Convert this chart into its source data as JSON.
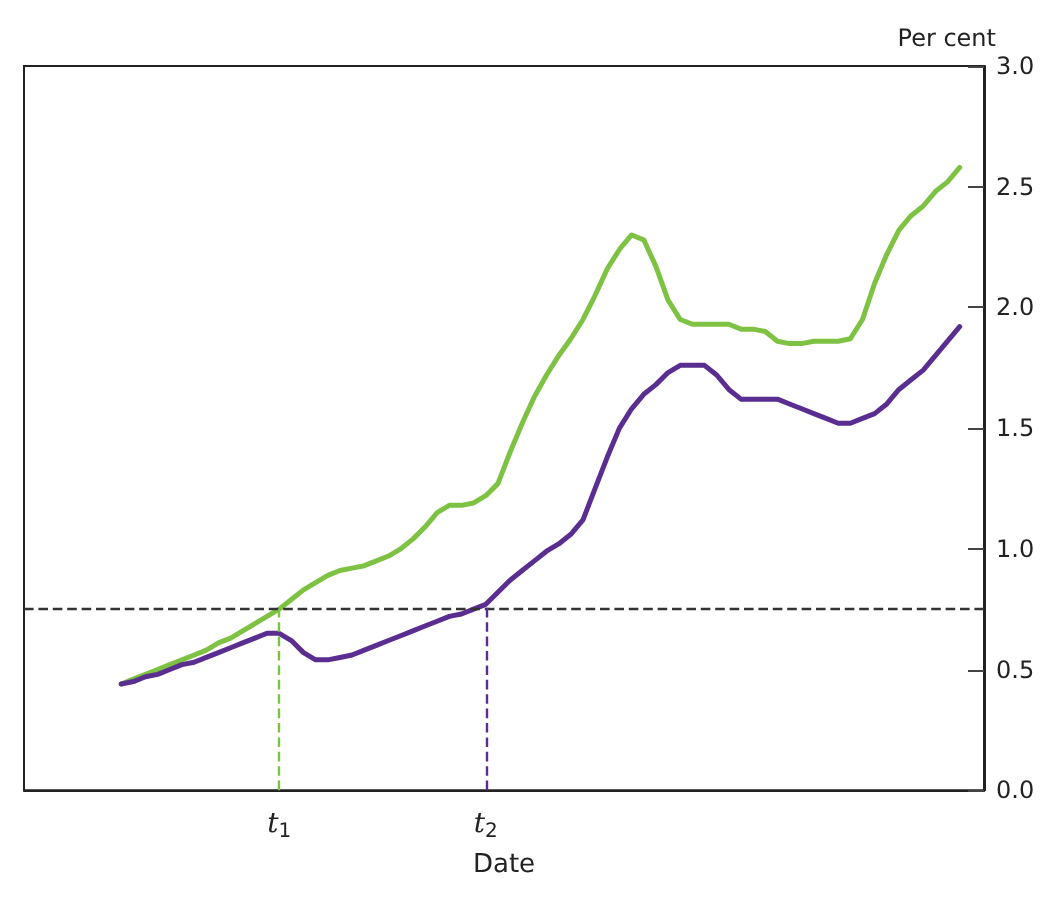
{
  "chart_data": {
    "type": "line",
    "xlabel": "Date",
    "ylabel": "Per cent",
    "marker": "none",
    "categories": [
      null,
      null,
      null,
      null,
      null,
      null,
      null,
      null,
      null,
      null,
      null,
      null,
      null,
      null,
      null,
      null,
      null,
      null,
      null,
      null,
      null,
      "t$_{1}$",
      null,
      null,
      null,
      null,
      null,
      null,
      null,
      null,
      null,
      null,
      null,
      null,
      null,
      null,
      null,
      null,
      "t$_{2}$",
      null,
      null,
      null,
      null,
      null,
      null,
      null,
      null,
      null,
      null,
      null,
      null,
      null,
      null,
      null,
      null,
      null,
      null,
      null,
      null,
      null,
      null,
      null,
      null,
      null,
      null,
      null,
      null,
      null,
      null,
      null,
      null,
      null,
      null,
      null,
      null,
      null,
      null,
      null,
      null,
      null
    ],
    "series": [
      {
        "color": "#7dc243",
        "values": [
          null,
          null,
          null,
          null,
          null,
          null,
          null,
          null,
          0.44,
          0.46,
          0.48,
          0.5,
          0.52,
          0.54,
          0.56,
          0.58,
          0.61,
          0.63,
          0.66,
          0.69,
          0.72,
          0.75,
          0.79,
          0.83,
          0.86,
          0.89,
          0.91,
          0.92,
          0.93,
          0.95,
          0.97,
          1.0,
          1.04,
          1.09,
          1.15,
          1.18,
          1.18,
          1.19,
          1.22,
          1.27,
          1.4,
          1.52,
          1.63,
          1.72,
          1.8,
          1.87,
          1.95,
          2.05,
          2.16,
          2.24,
          2.3,
          2.28,
          2.17,
          2.03,
          1.95,
          1.93,
          1.93,
          1.93,
          1.93,
          1.91,
          1.91,
          1.9,
          1.86,
          1.85,
          1.85,
          1.86,
          1.86,
          1.86,
          1.87,
          1.95,
          2.1,
          2.22,
          2.32,
          2.38,
          2.42,
          2.48,
          2.52,
          2.58,
          null,
          null
        ]
      },
      {
        "color": "#5a2d91",
        "values": [
          null,
          null,
          null,
          null,
          null,
          null,
          null,
          null,
          0.44,
          0.45,
          0.47,
          0.48,
          0.5,
          0.52,
          0.53,
          0.55,
          0.57,
          0.59,
          0.61,
          0.63,
          0.65,
          0.65,
          0.62,
          0.57,
          0.54,
          0.54,
          0.55,
          0.56,
          0.58,
          0.6,
          0.62,
          0.64,
          0.66,
          0.68,
          0.7,
          0.72,
          0.73,
          0.75,
          0.77,
          0.82,
          0.87,
          0.91,
          0.95,
          0.99,
          1.02,
          1.06,
          1.12,
          1.25,
          1.38,
          1.5,
          1.58,
          1.64,
          1.68,
          1.73,
          1.76,
          1.76,
          1.76,
          1.72,
          1.66,
          1.62,
          1.62,
          1.62,
          1.62,
          1.6,
          1.58,
          1.56,
          1.54,
          1.52,
          1.52,
          1.54,
          1.56,
          1.6,
          1.66,
          1.7,
          1.74,
          1.8,
          1.86,
          1.92,
          null,
          null
        ]
      }
    ],
    "ylim": [
      0,
      3
    ],
    "yticks": [
      {
        "value": 0,
        "label": "0.0"
      },
      {
        "value": 0.5,
        "label": "0.5"
      },
      {
        "value": 1,
        "label": "1.0"
      },
      {
        "value": 1.5,
        "label": "1.5"
      },
      {
        "value": 2,
        "label": "2.0"
      },
      {
        "value": 2.5,
        "label": "2.5"
      },
      {
        "value": 3,
        "label": "3.0"
      }
    ],
    "ref_lines": [
      {
        "axis": "y",
        "value": 0.75,
        "color": "#333333",
        "line_style": "dashed"
      },
      {
        "axis": "x",
        "value": "t$_{1}$",
        "color": "#7dc243",
        "line_style": "dashed"
      },
      {
        "axis": "x",
        "value": "t$_{2}$",
        "color": "#5a2d91",
        "line_style": "dashed"
      }
    ]
  }
}
